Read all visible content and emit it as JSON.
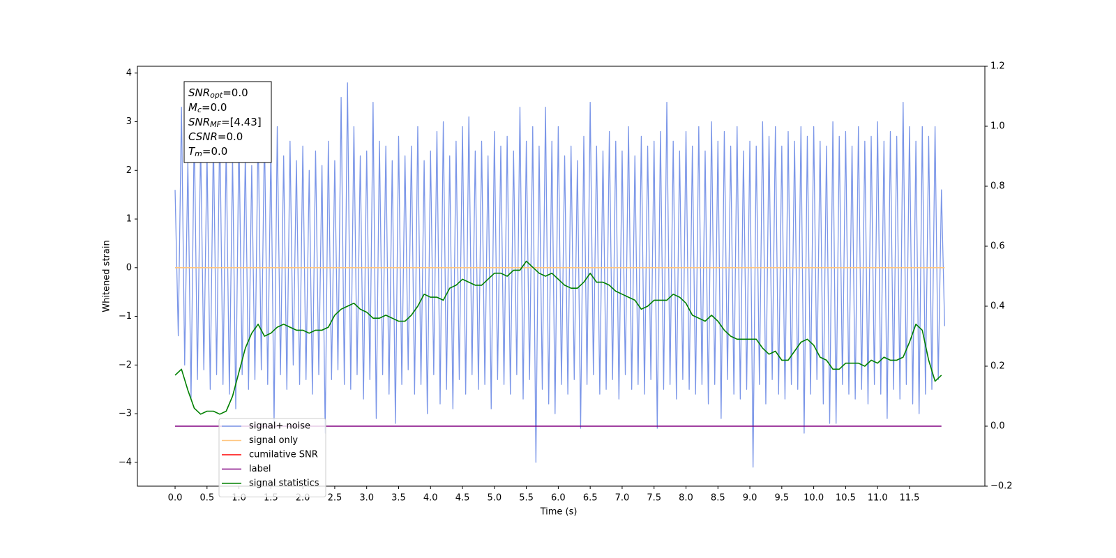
{
  "chart_data": {
    "type": "line",
    "xlabel": "Time (s)",
    "ylabel": "Whitened strain",
    "xlim": [
      -0.59,
      12.68
    ],
    "ylim": [
      -4.49,
      4.14
    ],
    "y2lim": [
      -0.2,
      1.2
    ],
    "xticks": [
      {
        "value": 0,
        "label": "0.0"
      },
      {
        "value": 0.5,
        "label": "0.5"
      },
      {
        "value": 1,
        "label": "1.0"
      },
      {
        "value": 1.5,
        "label": "1.5"
      },
      {
        "value": 2,
        "label": "2.0"
      },
      {
        "value": 2.5,
        "label": "2.5"
      },
      {
        "value": 3,
        "label": "3.0"
      },
      {
        "value": 3.5,
        "label": "3.5"
      },
      {
        "value": 4,
        "label": "4.0"
      },
      {
        "value": 4.5,
        "label": "4.5"
      },
      {
        "value": 5,
        "label": "5.0"
      },
      {
        "value": 5.5,
        "label": "5.5"
      },
      {
        "value": 6,
        "label": "6.0"
      },
      {
        "value": 6.5,
        "label": "6.5"
      },
      {
        "value": 7,
        "label": "7.0"
      },
      {
        "value": 7.5,
        "label": "7.5"
      },
      {
        "value": 8,
        "label": "8.0"
      },
      {
        "value": 8.5,
        "label": "8.5"
      },
      {
        "value": 9,
        "label": "9.0"
      },
      {
        "value": 9.5,
        "label": "9.5"
      },
      {
        "value": 10,
        "label": "10.0"
      },
      {
        "value": 10.5,
        "label": "10.5"
      },
      {
        "value": 11,
        "label": "11.0"
      },
      {
        "value": 11.5,
        "label": "11.5"
      }
    ],
    "yticks": [
      {
        "value": -4,
        "label": "−4"
      },
      {
        "value": -3,
        "label": "−3"
      },
      {
        "value": -2,
        "label": "−2"
      },
      {
        "value": -1,
        "label": "−1"
      },
      0,
      1,
      2,
      3,
      4
    ],
    "y2ticks": [
      {
        "value": -0.2,
        "label": "−0.2"
      },
      {
        "value": 0,
        "label": "0.0"
      },
      {
        "value": 0.2,
        "label": "0.2"
      },
      {
        "value": 0.4,
        "label": "0.4"
      },
      {
        "value": 0.6,
        "label": "0.6"
      },
      {
        "value": 0.8,
        "label": "0.8"
      },
      {
        "value": 1,
        "label": "1.0"
      },
      {
        "value": 1.2,
        "label": "1.2"
      }
    ],
    "annotation": [
      {
        "main": "SNR",
        "sub": "opt",
        "text": "=0.0"
      },
      {
        "main": "M",
        "sub": "c",
        "text": "=0.0"
      },
      {
        "main": "SNR",
        "sub": "MF",
        "text": "=[4.43]"
      },
      {
        "main": "CSNR",
        "text": "=0.0"
      },
      {
        "main": "T",
        "sub": "m",
        "text": "=0.0"
      }
    ],
    "legend": "lower left",
    "series": [
      {
        "name": "signal+ noise",
        "color": "#7b96e8",
        "axis": "y",
        "x": [
          0,
          0.05,
          0.1,
          0.15,
          0.2,
          0.25,
          0.3,
          0.35,
          0.4,
          0.45,
          0.5,
          0.55,
          0.6,
          0.65,
          0.7,
          0.75,
          0.8,
          0.85,
          0.9,
          0.95,
          1,
          1.05,
          1.1,
          1.15,
          1.2,
          1.25,
          1.3,
          1.35,
          1.4,
          1.45,
          1.5,
          1.55,
          1.6,
          1.65,
          1.7,
          1.75,
          1.8,
          1.85,
          1.9,
          1.95,
          2,
          2.05,
          2.1,
          2.15,
          2.2,
          2.25,
          2.3,
          2.35,
          2.4,
          2.45,
          2.5,
          2.55,
          2.6,
          2.65,
          2.7,
          2.75,
          2.8,
          2.85,
          2.9,
          2.95,
          3,
          3.05,
          3.1,
          3.15,
          3.2,
          3.25,
          3.3,
          3.35,
          3.4,
          3.45,
          3.5,
          3.55,
          3.6,
          3.65,
          3.7,
          3.75,
          3.8,
          3.85,
          3.9,
          3.95,
          4,
          4.05,
          4.1,
          4.15,
          4.2,
          4.25,
          4.3,
          4.35,
          4.4,
          4.45,
          4.5,
          4.55,
          4.6,
          4.65,
          4.7,
          4.75,
          4.8,
          4.85,
          4.9,
          4.95,
          5,
          5.05,
          5.1,
          5.15,
          5.2,
          5.25,
          5.3,
          5.35,
          5.4,
          5.45,
          5.5,
          5.55,
          5.6,
          5.65,
          5.7,
          5.75,
          5.8,
          5.85,
          5.9,
          5.95,
          6,
          6.05,
          6.1,
          6.15,
          6.2,
          6.25,
          6.3,
          6.35,
          6.4,
          6.45,
          6.5,
          6.55,
          6.6,
          6.65,
          6.7,
          6.75,
          6.8,
          6.85,
          6.9,
          6.95,
          7,
          7.05,
          7.1,
          7.15,
          7.2,
          7.25,
          7.3,
          7.35,
          7.4,
          7.45,
          7.5,
          7.55,
          7.6,
          7.65,
          7.7,
          7.75,
          7.8,
          7.85,
          7.9,
          7.95,
          8,
          8.05,
          8.1,
          8.15,
          8.2,
          8.25,
          8.3,
          8.35,
          8.4,
          8.45,
          8.5,
          8.55,
          8.6,
          8.65,
          8.7,
          8.75,
          8.8,
          8.85,
          8.9,
          8.95,
          9,
          9.05,
          9.1,
          9.15,
          9.2,
          9.25,
          9.3,
          9.35,
          9.4,
          9.45,
          9.5,
          9.55,
          9.6,
          9.65,
          9.7,
          9.75,
          9.8,
          9.85,
          9.9,
          9.95,
          10,
          10.05,
          10.1,
          10.15,
          10.2,
          10.25,
          10.3,
          10.35,
          10.4,
          10.45,
          10.5,
          10.55,
          10.6,
          10.65,
          10.7,
          10.75,
          10.8,
          10.85,
          10.9,
          10.95,
          11,
          11.05,
          11.1,
          11.15,
          11.2,
          11.25,
          11.3,
          11.35,
          11.4,
          11.45,
          11.5,
          11.55,
          11.6,
          11.65,
          11.7,
          11.75,
          11.8,
          11.85,
          11.9,
          11.95,
          12,
          12.05
        ],
        "values": [
          1.6,
          -1.4,
          3.3,
          -2.0,
          2.2,
          -2.7,
          2.9,
          -2.3,
          2.6,
          -2.1,
          2.4,
          -2.5,
          2.7,
          -2.2,
          3.0,
          -2.4,
          2.5,
          -2.6,
          2.3,
          -2.9,
          2.8,
          -2.2,
          2.4,
          -2.5,
          2.1,
          -2.3,
          2.9,
          -2.1,
          2.8,
          -2.4,
          2.5,
          -3.2,
          2.9,
          -2.2,
          2.3,
          -2.5,
          2.6,
          -2.0,
          2.2,
          -2.4,
          2.5,
          -2.3,
          2.0,
          -2.6,
          2.4,
          -2.2,
          2.1,
          -3.4,
          2.6,
          -2.3,
          2.2,
          -2.1,
          3.5,
          -2.4,
          3.8,
          -2.5,
          2.9,
          -2.2,
          2.3,
          -2.7,
          2.4,
          -2.3,
          3.4,
          -3.1,
          2.6,
          -2.2,
          2.5,
          -2.6,
          2.2,
          -3.2,
          2.7,
          -2.4,
          2.3,
          -2.1,
          2.5,
          -2.6,
          2.9,
          -2.4,
          2.2,
          -3.0,
          2.4,
          -2.2,
          2.8,
          -2.8,
          3.0,
          -2.5,
          2.3,
          -2.9,
          2.6,
          -2.3,
          2.9,
          -2.6,
          3.1,
          -2.2,
          2.4,
          -2.5,
          2.6,
          -2.4,
          2.3,
          -2.9,
          2.8,
          -2.3,
          2.5,
          -2.4,
          2.7,
          -2.6,
          2.4,
          -2.2,
          3.3,
          -2.7,
          2.6,
          -2.3,
          2.9,
          -4.0,
          2.5,
          -2.5,
          3.3,
          -2.8,
          2.6,
          -3.0,
          2.9,
          -2.4,
          2.3,
          -2.6,
          2.5,
          -2.3,
          2.2,
          -3.3,
          2.7,
          -2.4,
          3.4,
          -2.2,
          2.5,
          -2.6,
          2.4,
          -2.5,
          2.8,
          -2.3,
          2.6,
          -2.7,
          2.4,
          -2.2,
          2.9,
          -2.5,
          2.3,
          -2.4,
          2.7,
          -2.6,
          2.5,
          -2.3,
          2.6,
          -3.3,
          2.8,
          -2.5,
          3.4,
          -2.4,
          2.6,
          -2.7,
          2.4,
          -2.3,
          2.8,
          -2.5,
          2.5,
          -2.6,
          2.9,
          -2.4,
          2.4,
          -2.8,
          3.0,
          -2.4,
          2.6,
          -3.1,
          2.8,
          -2.3,
          2.5,
          -2.6,
          2.9,
          -2.7,
          2.4,
          -2.5,
          2.6,
          -4.1,
          2.5,
          -2.4,
          3.0,
          -2.8,
          2.7,
          -2.3,
          2.9,
          -2.6,
          2.5,
          -2.7,
          2.8,
          -2.4,
          2.6,
          -2.5,
          2.9,
          -3.4,
          2.7,
          -2.6,
          2.9,
          -2.3,
          2.6,
          -2.8,
          2.5,
          -3.2,
          3.0,
          -3.2,
          2.7,
          -2.4,
          2.8,
          -2.6,
          2.5,
          -2.7,
          2.9,
          -2.5,
          2.6,
          -2.8,
          2.7,
          -2.4,
          3.0,
          -2.6,
          2.6,
          -3.1,
          2.8,
          -2.5,
          2.7,
          -2.7,
          3.4,
          -2.4,
          2.9,
          -2.8,
          2.6,
          -3.0,
          2.9,
          -2.6,
          2.7,
          -2.5,
          2.9,
          -2.3,
          1.6,
          -1.2
        ]
      },
      {
        "name": "signal only",
        "color": "#ffc680",
        "axis": "y",
        "x": [
          0,
          12.05
        ],
        "values": [
          0,
          0
        ]
      },
      {
        "name": "cumilative SNR",
        "color": "#ff0000",
        "axis": "y2"
      },
      {
        "name": "label",
        "color": "#800080",
        "axis": "y2",
        "x": [
          0,
          12.0
        ],
        "values": [
          0,
          0
        ]
      },
      {
        "name": "signal statistics",
        "color": "#008000",
        "axis": "y2",
        "x": [
          0,
          0.1,
          0.2,
          0.3,
          0.4,
          0.5,
          0.6,
          0.7,
          0.8,
          0.9,
          1,
          1.1,
          1.2,
          1.3,
          1.4,
          1.5,
          1.6,
          1.7,
          1.8,
          1.9,
          2,
          2.1,
          2.2,
          2.3,
          2.4,
          2.5,
          2.6,
          2.7,
          2.8,
          2.9,
          3,
          3.1,
          3.2,
          3.3,
          3.4,
          3.5,
          3.6,
          3.7,
          3.8,
          3.9,
          4,
          4.1,
          4.2,
          4.3,
          4.4,
          4.5,
          4.6,
          4.7,
          4.8,
          4.9,
          5,
          5.1,
          5.2,
          5.3,
          5.4,
          5.5,
          5.6,
          5.7,
          5.8,
          5.9,
          6,
          6.1,
          6.2,
          6.3,
          6.4,
          6.5,
          6.6,
          6.7,
          6.8,
          6.9,
          7,
          7.1,
          7.2,
          7.3,
          7.4,
          7.5,
          7.6,
          7.7,
          7.8,
          7.9,
          8,
          8.1,
          8.2,
          8.3,
          8.4,
          8.5,
          8.6,
          8.7,
          8.8,
          8.9,
          9,
          9.1,
          9.2,
          9.3,
          9.4,
          9.5,
          9.6,
          9.7,
          9.8,
          9.9,
          10,
          10.1,
          10.2,
          10.3,
          10.4,
          10.5,
          10.6,
          10.7,
          10.8,
          10.9,
          11,
          11.1,
          11.2,
          11.3,
          11.4,
          11.5,
          11.6,
          11.7,
          11.8,
          11.9,
          12
        ],
        "values": [
          0.17,
          0.19,
          0.12,
          0.06,
          0.04,
          0.05,
          0.05,
          0.04,
          0.05,
          0.1,
          0.18,
          0.26,
          0.31,
          0.34,
          0.3,
          0.31,
          0.33,
          0.34,
          0.33,
          0.32,
          0.32,
          0.31,
          0.32,
          0.32,
          0.33,
          0.37,
          0.39,
          0.4,
          0.41,
          0.39,
          0.38,
          0.36,
          0.36,
          0.37,
          0.36,
          0.35,
          0.35,
          0.37,
          0.4,
          0.44,
          0.43,
          0.43,
          0.42,
          0.46,
          0.47,
          0.49,
          0.48,
          0.47,
          0.47,
          0.49,
          0.51,
          0.51,
          0.5,
          0.52,
          0.52,
          0.55,
          0.53,
          0.51,
          0.5,
          0.51,
          0.49,
          0.47,
          0.46,
          0.46,
          0.48,
          0.51,
          0.48,
          0.48,
          0.47,
          0.45,
          0.44,
          0.43,
          0.42,
          0.39,
          0.4,
          0.42,
          0.42,
          0.42,
          0.44,
          0.43,
          0.41,
          0.37,
          0.36,
          0.35,
          0.37,
          0.35,
          0.32,
          0.3,
          0.29,
          0.29,
          0.29,
          0.29,
          0.26,
          0.24,
          0.25,
          0.22,
          0.22,
          0.25,
          0.28,
          0.29,
          0.27,
          0.23,
          0.22,
          0.19,
          0.19,
          0.21,
          0.21,
          0.21,
          0.2,
          0.22,
          0.21,
          0.23,
          0.22,
          0.22,
          0.23,
          0.28,
          0.34,
          0.32,
          0.22,
          0.15,
          0.17
        ]
      }
    ]
  }
}
